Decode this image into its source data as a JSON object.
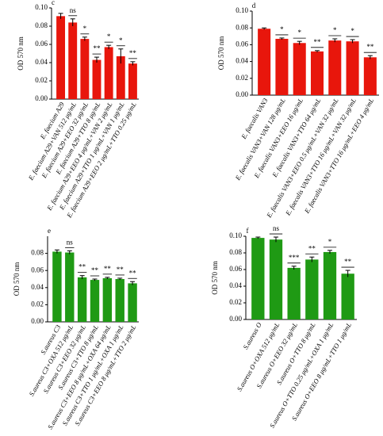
{
  "chart_data": [
    {
      "type": "bar",
      "panel": "c",
      "ylabel": "OD 570 nm",
      "color": "#e8160c",
      "categories": [
        "E. faecium A29",
        "E. faecium A29+VAN 512 μg/mL",
        "E. faecium A29+EEO 32 μg/mL",
        "E. faecium A29+TTO 8 μg/mL",
        "E. faecium A29+EEO 4 μg/mL+VAN 2 μg/mL",
        "E. faecium A29+TTO 1 μg/mL+VAN 1 μg/mL",
        "E. faecium A29+EEO 2 μg/mL+TTO 0.25 μg/mL"
      ],
      "values": [
        0.091,
        0.084,
        0.066,
        0.043,
        0.057,
        0.047,
        0.039
      ],
      "errors": [
        0.003,
        0.004,
        0.002,
        0.003,
        0.002,
        0.008,
        0.002
      ],
      "significance": [
        null,
        "ns",
        "*",
        "**",
        "*",
        "*",
        "**"
      ],
      "ylim": [
        0,
        0.1
      ],
      "yticks": [
        {
          "value": 0,
          "label": "0.00"
        },
        {
          "value": 0.02,
          "label": "0.02"
        },
        {
          "value": 0.04,
          "label": "0.04"
        },
        {
          "value": 0.06,
          "label": "0.06"
        },
        {
          "value": 0.08,
          "label": "0.08"
        },
        {
          "value": 0.1,
          "label": "0.10"
        }
      ]
    },
    {
      "type": "bar",
      "panel": "d",
      "ylabel": "OD 570 nm",
      "color": "#e8160c",
      "categories": [
        "E. faecalis VAN3",
        "E. faecalis VAN3+VAN 128 μg/mL",
        "E. faecalis VAN3+EEO 16 μg/mL",
        "E. faecalis VAN3+TTO 64 μg/mL",
        "E. faecalis VAN3+EEO 0.5 μg/mL+VAN 32 μg/mL",
        "E. faecalis VAN3+TTO 16 μg/mL+VAN 32 μg/mL",
        "E. faecalis VAN3+TTO 16 μg/mL+EEO 4 μg/mL"
      ],
      "values": [
        0.079,
        0.067,
        0.062,
        0.052,
        0.065,
        0.064,
        0.045
      ],
      "errors": [
        0.001,
        0.001,
        0.002,
        0.001,
        0.002,
        0.002,
        0.002
      ],
      "significance": [
        null,
        "*",
        "*",
        "**",
        "*",
        "*",
        "**"
      ],
      "ylim": [
        0,
        0.1
      ],
      "yticks": [
        {
          "value": 0,
          "label": "0.00"
        },
        {
          "value": 0.02,
          "label": "0.02"
        },
        {
          "value": 0.04,
          "label": "0.04"
        },
        {
          "value": 0.06,
          "label": "0.06"
        },
        {
          "value": 0.08,
          "label": "0.08"
        },
        {
          "value": 0.1,
          "label": "0.10"
        }
      ]
    },
    {
      "type": "bar",
      "panel": "e",
      "ylabel": "OD 570 nm",
      "color": "#1f9a14",
      "categories": [
        "S.aureus C3",
        "S.aureus C3+OXA 512 μg/mL",
        "S.aureus C3+EEO 32 μg/mL",
        "S.aureus C3+TTO 8 μg/mL",
        "S.aureus C3+EEO 8 μg/mL+OXA 64 μg/mL",
        "S.aureus C3+TTO 1 μg/mL+OXA 1 μg/mL",
        "S.aureus C3+EEO 8 μg/mL+TTO 2 μg/mL"
      ],
      "values": [
        0.082,
        0.081,
        0.052,
        0.049,
        0.051,
        0.05,
        0.045
      ],
      "errors": [
        0.002,
        0.002,
        0.002,
        0.001,
        0.001,
        0.001,
        0.002
      ],
      "significance": [
        null,
        "ns",
        "**",
        "**",
        "**",
        "**",
        "**"
      ],
      "ylim": [
        0,
        0.1
      ],
      "yticks": [
        {
          "value": 0,
          "label": "0.00"
        },
        {
          "value": 0.02,
          "label": "0.02"
        },
        {
          "value": 0.04,
          "label": "0.04"
        },
        {
          "value": 0.06,
          "label": "0.06"
        },
        {
          "value": 0.08,
          "label": "0.08"
        }
      ]
    },
    {
      "type": "bar",
      "panel": "f",
      "ylabel": "OD 570 nm",
      "color": "#1f9a14",
      "categories": [
        "S.aureus O",
        "S.aureus O+OXA 512 μg/mL",
        "S.aureus O+EEO 32 μg/mL",
        "S.aureus O+TTO 8 μg/mL",
        "S.aureus O+TTO 0.25 μg/mL+OXA 1 μg/mL",
        "S.aureus O+EEO 8 μg/mL+TTO 1 μg/mL"
      ],
      "values": [
        0.098,
        0.096,
        0.062,
        0.072,
        0.081,
        0.055
      ],
      "errors": [
        0.001,
        0.003,
        0.002,
        0.003,
        0.002,
        0.004
      ],
      "significance": [
        null,
        "ns",
        "***",
        "**",
        "*",
        "**"
      ],
      "ylim": [
        0,
        0.1
      ],
      "yticks": [
        {
          "value": 0,
          "label": "0.00"
        },
        {
          "value": 0.02,
          "label": "0.02"
        },
        {
          "value": 0.04,
          "label": "0.04"
        },
        {
          "value": 0.06,
          "label": "0.06"
        },
        {
          "value": 0.08,
          "label": "0.08"
        },
        {
          "value": 0.1,
          "label": "0.10"
        }
      ]
    }
  ]
}
